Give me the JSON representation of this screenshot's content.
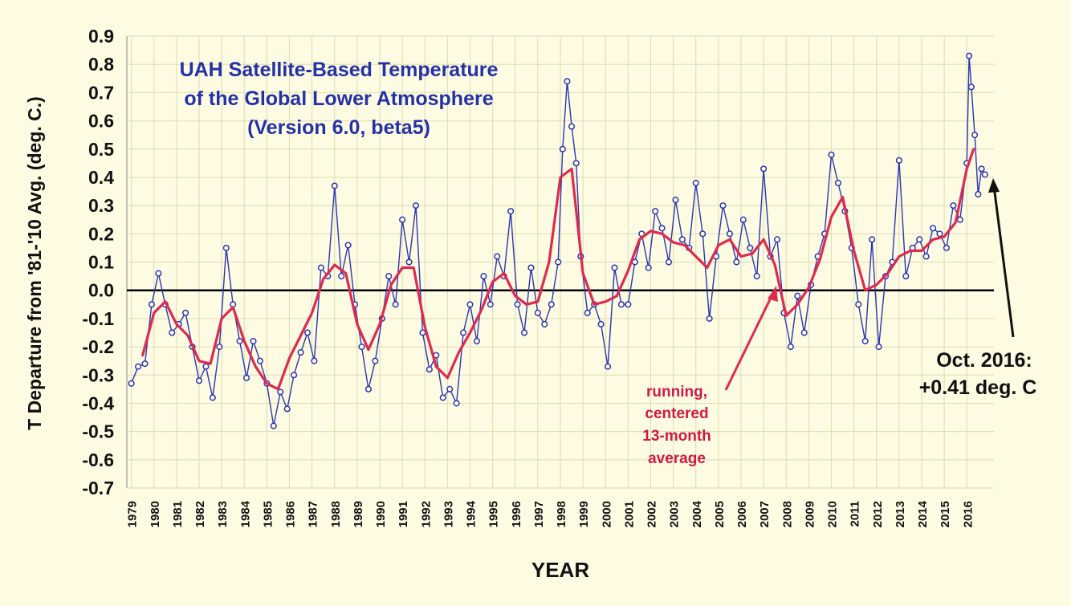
{
  "chart_data": {
    "type": "line",
    "title_lines": [
      "UAH Satellite-Based Temperature",
      "of the Global Lower Atmosphere",
      "(Version 6.0, beta5)"
    ],
    "xlabel": "YEAR",
    "ylabel": "T Departure from '81-'10 Avg. (deg. C.)",
    "ylim": [
      -0.7,
      0.9
    ],
    "xlim": [
      1978.8,
      2017.2
    ],
    "grid": true,
    "y_ticks": [
      "0.9",
      "0.8",
      "0.7",
      "0.6",
      "0.5",
      "0.4",
      "0.3",
      "0.2",
      "0.1",
      "0.0",
      "-0.1",
      "-0.2",
      "-0.3",
      "-0.4",
      "-0.5",
      "-0.6",
      "-0.7"
    ],
    "x_ticks": [
      "1979",
      "1980",
      "1981",
      "1982",
      "1983",
      "1984",
      "1985",
      "1986",
      "1987",
      "1988",
      "1989",
      "1990",
      "1991",
      "1992",
      "1993",
      "1994",
      "1995",
      "1996",
      "1997",
      "1998",
      "1999",
      "2000",
      "2001",
      "2002",
      "2003",
      "2004",
      "2005",
      "2006",
      "2007",
      "2008",
      "2009",
      "2010",
      "2011",
      "2012",
      "2013",
      "2014",
      "2015",
      "2016"
    ],
    "colors": {
      "monthly": "#2b35b0",
      "running": "#e0294f",
      "title": "#2431a8",
      "annotation": "#d11a45",
      "axis_text": "#111111",
      "zero_line": "#000000",
      "grid": "#dcdcb4"
    },
    "series": [
      {
        "role": "monthly",
        "x": [
          1979.0,
          1979.3,
          1979.6,
          1979.9,
          1980.2,
          1980.5,
          1980.8,
          1981.1,
          1981.4,
          1981.7,
          1982.0,
          1982.3,
          1982.6,
          1982.9,
          1983.2,
          1983.5,
          1983.8,
          1984.1,
          1984.4,
          1984.7,
          1985.0,
          1985.3,
          1985.6,
          1985.9,
          1986.2,
          1986.5,
          1986.8,
          1987.1,
          1987.4,
          1987.7,
          1988.0,
          1988.3,
          1988.6,
          1988.9,
          1989.2,
          1989.5,
          1989.8,
          1990.1,
          1990.4,
          1990.7,
          1991.0,
          1991.3,
          1991.6,
          1991.9,
          1992.2,
          1992.5,
          1992.8,
          1993.1,
          1993.4,
          1993.7,
          1994.0,
          1994.3,
          1994.6,
          1994.9,
          1995.2,
          1995.5,
          1995.8,
          1996.1,
          1996.4,
          1996.7,
          1997.0,
          1997.3,
          1997.6,
          1997.9,
          1998.1,
          1998.3,
          1998.5,
          1998.7,
          1998.9,
          1999.2,
          1999.5,
          1999.8,
          2000.1,
          2000.4,
          2000.7,
          2001.0,
          2001.3,
          2001.6,
          2001.9,
          2002.2,
          2002.5,
          2002.8,
          2003.1,
          2003.4,
          2003.7,
          2004.0,
          2004.3,
          2004.6,
          2004.9,
          2005.2,
          2005.5,
          2005.8,
          2006.1,
          2006.4,
          2006.7,
          2007.0,
          2007.3,
          2007.6,
          2007.9,
          2008.2,
          2008.5,
          2008.8,
          2009.1,
          2009.4,
          2009.7,
          2010.0,
          2010.3,
          2010.6,
          2010.9,
          2011.2,
          2011.5,
          2011.8,
          2012.1,
          2012.4,
          2012.7,
          2013.0,
          2013.3,
          2013.6,
          2013.9,
          2014.2,
          2014.5,
          2014.8,
          2015.1,
          2015.4,
          2015.7,
          2016.0,
          2016.1,
          2016.2,
          2016.35,
          2016.5,
          2016.65,
          2016.8
        ],
        "y": [
          -0.33,
          -0.27,
          -0.26,
          -0.05,
          0.06,
          -0.05,
          -0.15,
          -0.12,
          -0.08,
          -0.2,
          -0.32,
          -0.27,
          -0.38,
          -0.2,
          0.15,
          -0.05,
          -0.18,
          -0.31,
          -0.18,
          -0.25,
          -0.33,
          -0.48,
          -0.36,
          -0.42,
          -0.3,
          -0.22,
          -0.15,
          -0.25,
          0.08,
          0.05,
          0.37,
          0.05,
          0.16,
          -0.05,
          -0.2,
          -0.35,
          -0.25,
          -0.1,
          0.05,
          -0.05,
          0.25,
          0.1,
          0.3,
          -0.15,
          -0.28,
          -0.23,
          -0.38,
          -0.35,
          -0.4,
          -0.15,
          -0.05,
          -0.18,
          0.05,
          -0.05,
          0.12,
          0.05,
          0.28,
          -0.05,
          -0.15,
          0.08,
          -0.08,
          -0.12,
          -0.05,
          0.1,
          0.5,
          0.74,
          0.58,
          0.45,
          0.12,
          -0.08,
          -0.05,
          -0.12,
          -0.27,
          0.08,
          -0.05,
          -0.05,
          0.1,
          0.2,
          0.08,
          0.28,
          0.22,
          0.1,
          0.32,
          0.18,
          0.15,
          0.38,
          0.2,
          -0.1,
          0.12,
          0.3,
          0.2,
          0.1,
          0.25,
          0.15,
          0.05,
          0.43,
          0.12,
          0.18,
          -0.08,
          -0.2,
          -0.02,
          -0.15,
          0.02,
          0.12,
          0.2,
          0.48,
          0.38,
          0.28,
          0.15,
          -0.05,
          -0.18,
          0.18,
          -0.2,
          0.05,
          0.1,
          0.46,
          0.05,
          0.15,
          0.18,
          0.12,
          0.22,
          0.2,
          0.15,
          0.3,
          0.25,
          0.45,
          0.83,
          0.72,
          0.55,
          0.34,
          0.43,
          0.41
        ]
      },
      {
        "role": "running",
        "x": [
          1979.5,
          1980.0,
          1980.5,
          1981.0,
          1981.5,
          1982.0,
          1982.5,
          1983.0,
          1983.5,
          1984.0,
          1984.5,
          1985.0,
          1985.5,
          1986.0,
          1986.5,
          1987.0,
          1987.5,
          1988.0,
          1988.5,
          1989.0,
          1989.5,
          1990.0,
          1990.5,
          1991.0,
          1991.5,
          1992.0,
          1992.5,
          1993.0,
          1993.5,
          1994.0,
          1994.5,
          1995.0,
          1995.5,
          1996.0,
          1996.5,
          1997.0,
          1997.5,
          1998.0,
          1998.5,
          1999.0,
          1999.5,
          2000.0,
          2000.5,
          2001.0,
          2001.5,
          2002.0,
          2002.5,
          2003.0,
          2003.5,
          2004.0,
          2004.5,
          2005.0,
          2005.5,
          2006.0,
          2006.5,
          2007.0,
          2007.5,
          2008.0,
          2008.5,
          2009.0,
          2009.5,
          2010.0,
          2010.5,
          2011.0,
          2011.5,
          2012.0,
          2012.5,
          2013.0,
          2013.5,
          2014.0,
          2014.5,
          2015.0,
          2015.5,
          2016.0,
          2016.3
        ],
        "y": [
          -0.23,
          -0.08,
          -0.04,
          -0.12,
          -0.16,
          -0.25,
          -0.26,
          -0.1,
          -0.06,
          -0.18,
          -0.27,
          -0.33,
          -0.35,
          -0.24,
          -0.16,
          -0.08,
          0.04,
          0.09,
          0.06,
          -0.12,
          -0.21,
          -0.12,
          0.02,
          0.08,
          0.08,
          -0.13,
          -0.27,
          -0.31,
          -0.22,
          -0.15,
          -0.07,
          0.03,
          0.06,
          -0.02,
          -0.05,
          -0.04,
          0.1,
          0.4,
          0.43,
          0.06,
          -0.05,
          -0.04,
          -0.02,
          0.07,
          0.18,
          0.21,
          0.2,
          0.17,
          0.16,
          0.12,
          0.08,
          0.16,
          0.18,
          0.12,
          0.13,
          0.18,
          0.09,
          -0.09,
          -0.05,
          0.01,
          0.11,
          0.26,
          0.33,
          0.14,
          0.0,
          0.02,
          0.06,
          0.12,
          0.14,
          0.14,
          0.18,
          0.19,
          0.24,
          0.43,
          0.5
        ]
      }
    ],
    "annotations": {
      "running_label": [
        "running,",
        "centered",
        "13-month",
        "average"
      ],
      "latest_label": [
        "Oct. 2016:",
        "+0.41 deg. C"
      ]
    }
  }
}
